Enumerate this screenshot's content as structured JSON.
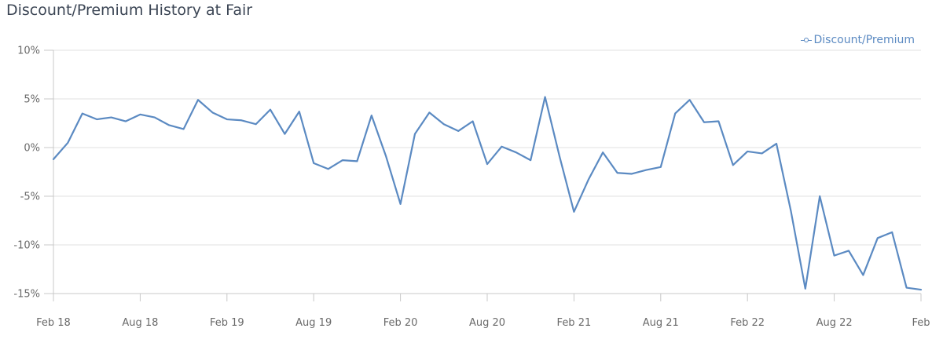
{
  "chart_data": {
    "type": "line",
    "title": "Discount/Premium History at Fair",
    "xlabel": "",
    "ylabel": "",
    "ylim": [
      -15,
      10
    ],
    "yticks": [
      10,
      5,
      0,
      -5,
      -10,
      -15
    ],
    "yticks_labels": [
      "10%",
      "5%",
      "0%",
      "-5%",
      "-10%",
      "-15%"
    ],
    "xticks_labels": [
      "Feb 18",
      "Aug 18",
      "Feb 19",
      "Aug 19",
      "Feb 20",
      "Aug 20",
      "Feb 21",
      "Aug 21",
      "Feb 22",
      "Aug 22",
      "Feb"
    ],
    "grid": true,
    "legend_position": "top-right",
    "series": [
      {
        "name": "Discount/Premium",
        "color": "#5b8ac2",
        "values": [
          -1.2,
          0.5,
          3.5,
          2.9,
          3.1,
          2.7,
          3.4,
          3.1,
          2.3,
          1.9,
          4.9,
          3.6,
          2.9,
          2.8,
          2.4,
          3.9,
          1.4,
          3.7,
          -1.6,
          -2.2,
          -1.3,
          -1.4,
          3.3,
          -0.9,
          -5.8,
          1.4,
          3.6,
          2.4,
          1.7,
          2.7,
          -1.7,
          0.1,
          -0.5,
          -1.3,
          5.2,
          -0.9,
          -6.6,
          -3.3,
          -0.5,
          -2.6,
          -2.7,
          -2.3,
          -2.0,
          3.5,
          4.9,
          2.6,
          2.7,
          -1.8,
          -0.4,
          -0.6,
          0.4,
          -6.5,
          -14.5,
          -5.0,
          -11.1,
          -10.6,
          -13.1,
          -9.3,
          -8.7,
          -14.4,
          -14.6
        ]
      }
    ]
  }
}
